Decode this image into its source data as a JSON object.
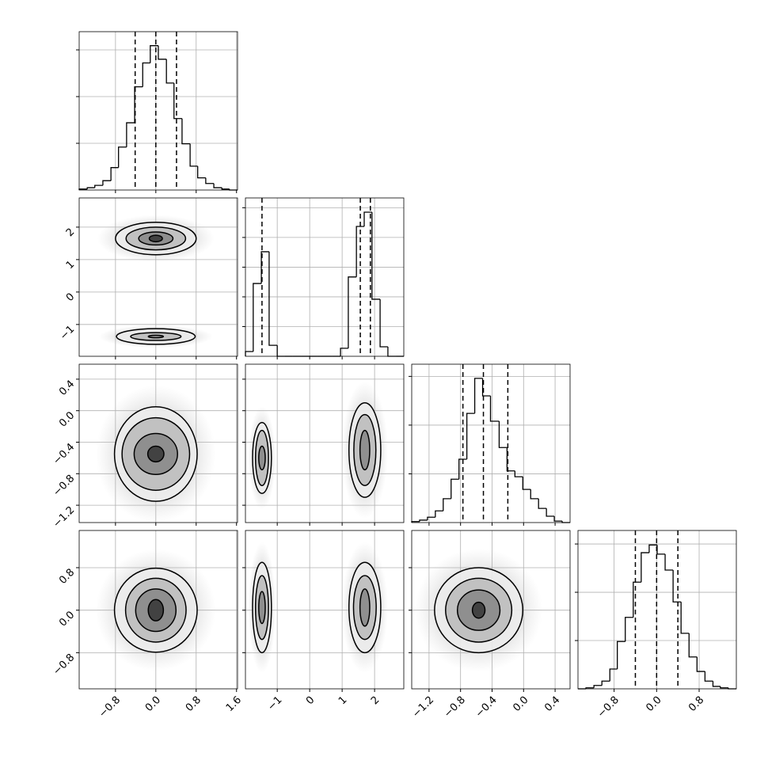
{
  "chart_data": {
    "type": "corner",
    "variables": [
      {
        "lim": [
          -1.52,
          1.62
        ],
        "ticks": [
          {
            "value": -0.8,
            "label": "−0.8"
          },
          {
            "value": 0,
            "label": "0.0"
          },
          {
            "value": 0.8,
            "label": "0.8"
          },
          {
            "value": 1.6,
            "label": "1.6"
          }
        ],
        "quantiles": [
          -0.41,
          0.0,
          0.41
        ],
        "hist": {
          "bins": [
            -1.52,
            -1.36,
            -1.21,
            -1.05,
            -0.89,
            -0.74,
            -0.58,
            -0.42,
            -0.26,
            -0.11,
            0.05,
            0.21,
            0.36,
            0.52,
            0.68,
            0.83,
            0.99,
            1.15,
            1.31,
            1.46,
            1.62
          ],
          "counts": [
            2,
            5,
            10,
            20,
            48,
            92,
            144,
            221,
            272,
            309,
            280,
            229,
            153,
            99,
            51,
            26,
            14,
            5,
            2,
            0
          ],
          "ylim": [
            0,
            339
          ],
          "yticks": [
            100,
            200,
            300
          ]
        }
      },
      {
        "lim": [
          -1.98,
          2.9
        ],
        "ticks": [
          {
            "value": -1,
            "label": "−1"
          },
          0,
          1,
          2
        ],
        "quantiles": [
          -1.47,
          1.56,
          1.87
        ],
        "hist": {
          "bins": [
            -1.98,
            -1.74,
            -1.49,
            -1.25,
            -1.0,
            -0.76,
            -0.52,
            -0.27,
            -0.03,
            0.22,
            0.46,
            0.7,
            0.95,
            1.19,
            1.44,
            1.68,
            1.92,
            2.17,
            2.41,
            2.66,
            2.9
          ],
          "counts": [
            16,
            245,
            352,
            37,
            0,
            0,
            0,
            0,
            0,
            0,
            0,
            0,
            27,
            267,
            437,
            485,
            192,
            32,
            0,
            0
          ],
          "ylim": [
            0,
            533
          ],
          "yticks": [
            100,
            200,
            300,
            400,
            500
          ]
        }
      },
      {
        "lim": [
          -1.42,
          0.59
        ],
        "ticks": [
          {
            "value": -1.2,
            "label": "−1.2"
          },
          {
            "value": -0.8,
            "label": "−0.8"
          },
          {
            "value": -0.4,
            "label": "−0.4"
          },
          {
            "value": 0,
            "label": "0.0"
          },
          {
            "value": 0.4,
            "label": "0.4"
          }
        ],
        "quantiles": [
          -0.77,
          -0.51,
          -0.2
        ],
        "hist": {
          "bins": [
            -1.42,
            -1.32,
            -1.22,
            -1.12,
            -1.02,
            -0.92,
            -0.82,
            -0.72,
            -0.62,
            -0.52,
            -0.42,
            -0.31,
            -0.21,
            -0.11,
            -0.01,
            0.09,
            0.19,
            0.29,
            0.39,
            0.49,
            0.59
          ],
          "counts": [
            2,
            5,
            11,
            24,
            49,
            89,
            130,
            224,
            296,
            260,
            208,
            154,
            106,
            94,
            68,
            49,
            29,
            13,
            3,
            0
          ],
          "ylim": [
            0,
            325
          ],
          "yticks": [
            100,
            200,
            300
          ]
        }
      },
      {
        "lim": [
          -1.48,
          1.5
        ],
        "ticks": [
          {
            "value": -0.8,
            "label": "−0.8"
          },
          {
            "value": 0,
            "label": "0.0"
          },
          {
            "value": 0.8,
            "label": "0.8"
          }
        ],
        "quantiles": [
          -0.4,
          0.0,
          0.4
        ],
        "hist": {
          "bins": [
            -1.48,
            -1.33,
            -1.18,
            -1.03,
            -0.88,
            -0.74,
            -0.59,
            -0.44,
            -0.29,
            -0.14,
            0.01,
            0.16,
            0.31,
            0.46,
            0.61,
            0.76,
            0.91,
            1.06,
            1.2,
            1.35,
            1.5
          ],
          "counts": [
            0,
            2,
            7,
            16,
            41,
            98,
            148,
            221,
            282,
            298,
            279,
            246,
            180,
            115,
            66,
            36,
            16,
            5,
            2,
            0
          ],
          "ylim": [
            0,
            328
          ],
          "yticks": [
            100,
            200,
            300
          ]
        }
      }
    ],
    "pairs": [
      [
        {
          "clusters": [
            {
              "x": 0,
              "y": 1.65,
              "levels": [
                [
                  0.8,
                  0.5
                ],
                [
                  0.59,
                  0.35
                ],
                [
                  0.34,
                  0.2
                ],
                [
                  0.13,
                  0.1
                ]
              ]
            },
            {
              "x": 0,
              "y": -1.37,
              "levels": [
                [
                  0.78,
                  0.24
                ],
                [
                  0.5,
                  0.12
                ],
                [
                  0.15,
                  0.04
                ]
              ]
            }
          ]
        }
      ],
      [
        {
          "clusters": [
            {
              "x": 0,
              "y": -0.55,
              "levels": [
                [
                  0.82,
                  0.6
                ],
                [
                  0.67,
                  0.46
                ],
                [
                  0.43,
                  0.26
                ],
                [
                  0.16,
                  0.1
                ]
              ]
            }
          ]
        },
        {
          "clusters": [
            {
              "x": -1.47,
              "y": -0.6,
              "levels": [
                [
                  0.29,
                  0.45
                ],
                [
                  0.2,
                  0.35
                ],
                [
                  0.1,
                  0.15
                ]
              ]
            },
            {
              "x": 1.7,
              "y": -0.5,
              "levels": [
                [
                  0.49,
                  0.6
                ],
                [
                  0.34,
                  0.45
                ],
                [
                  0.15,
                  0.25
                ]
              ]
            }
          ]
        }
      ],
      [
        {
          "clusters": [
            {
              "x": 0,
              "y": 0.0,
              "levels": [
                [
                  0.82,
                  0.79
                ],
                [
                  0.6,
                  0.6
                ],
                [
                  0.4,
                  0.4
                ],
                [
                  0.15,
                  0.2
                ]
              ]
            }
          ]
        },
        {
          "clusters": [
            {
              "x": -1.47,
              "y": 0.05,
              "levels": [
                [
                  0.29,
                  0.85
                ],
                [
                  0.2,
                  0.6
                ],
                [
                  0.1,
                  0.3
                ]
              ]
            },
            {
              "x": 1.7,
              "y": 0.05,
              "levels": [
                [
                  0.49,
                  0.85
                ],
                [
                  0.35,
                  0.6
                ],
                [
                  0.15,
                  0.35
                ]
              ]
            }
          ]
        },
        {
          "clusters": [
            {
              "x": -0.57,
              "y": 0.0,
              "levels": [
                [
                  0.56,
                  0.8
                ],
                [
                  0.42,
                  0.6
                ],
                [
                  0.27,
                  0.38
                ],
                [
                  0.08,
                  0.15
                ]
              ]
            }
          ]
        }
      ]
    ]
  }
}
